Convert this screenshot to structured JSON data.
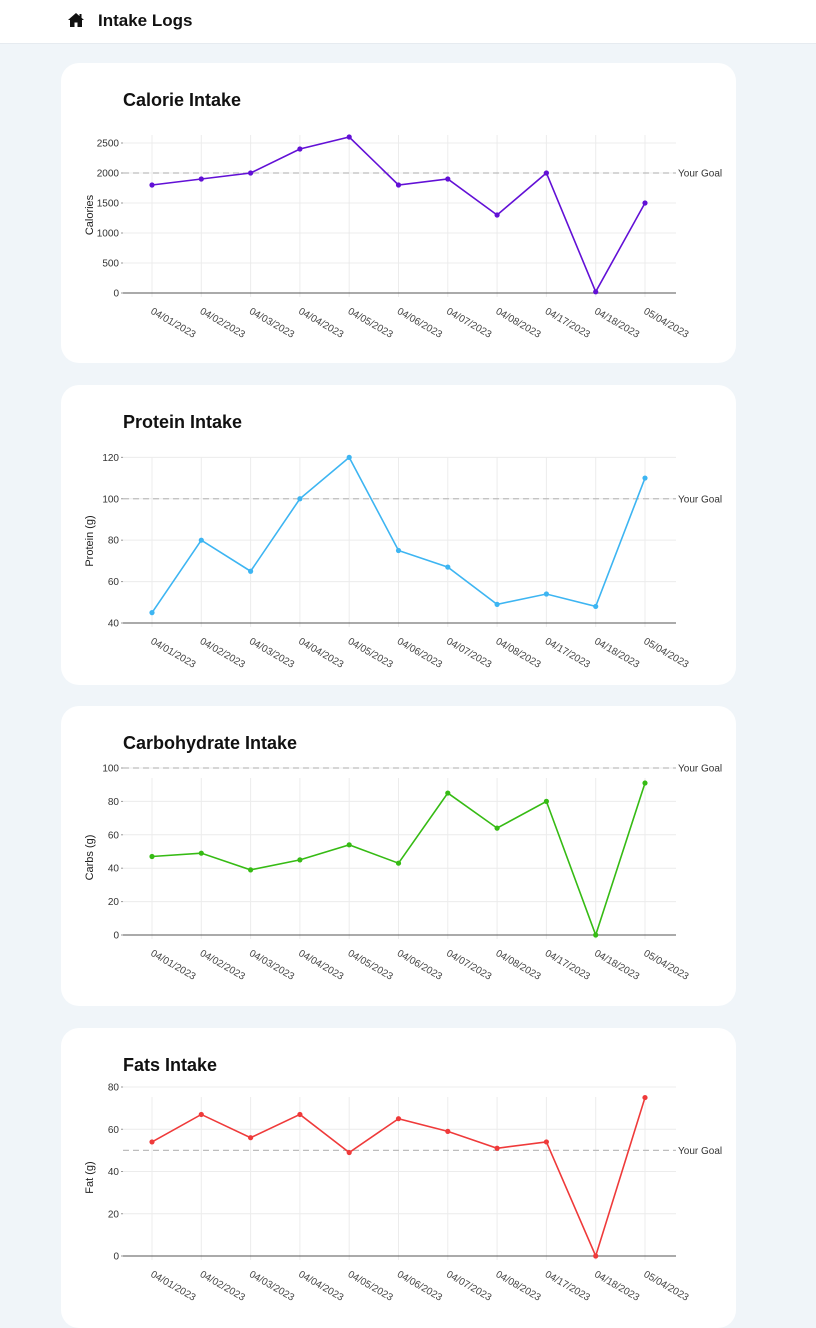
{
  "header": {
    "title": "Intake Logs",
    "home_icon": "home-icon"
  },
  "chart_data": [
    {
      "type": "line",
      "title": "Calorie Intake",
      "ylabel": "Calories",
      "xlabel": "",
      "categories": [
        "04/01/2023",
        "04/02/2023",
        "04/03/2023",
        "04/04/2023",
        "04/05/2023",
        "04/06/2023",
        "04/07/2023",
        "04/08/2023",
        "04/17/2023",
        "04/18/2023",
        "05/04/2023"
      ],
      "series": [
        {
          "values": [
            1800,
            1900,
            2000,
            2400,
            2600,
            1800,
            1900,
            1300,
            2000,
            20,
            1500
          ]
        }
      ],
      "ylim": [
        0,
        2800
      ],
      "yticks": [
        0,
        500,
        1000,
        1500,
        2000,
        2500
      ],
      "goal": 2000,
      "goal_label": "Your Goal",
      "color": "#6210d6",
      "grid": true
    },
    {
      "type": "line",
      "title": "Protein Intake",
      "ylabel": "Protein (g)",
      "xlabel": "",
      "categories": [
        "04/01/2023",
        "04/02/2023",
        "04/03/2023",
        "04/04/2023",
        "04/05/2023",
        "04/06/2023",
        "04/07/2023",
        "04/08/2023",
        "04/17/2023",
        "04/18/2023",
        "05/04/2023"
      ],
      "series": [
        {
          "values": [
            45,
            80,
            65,
            100,
            120,
            75,
            67,
            49,
            54,
            48,
            110
          ]
        }
      ],
      "ylim": [
        40,
        125
      ],
      "yticks": [
        40,
        60,
        80,
        100,
        120
      ],
      "goal": 100,
      "goal_label": "Your Goal",
      "color": "#3db5f2",
      "grid": true
    },
    {
      "type": "line",
      "title": "Carbohydrate Intake",
      "ylabel": "Carbs (g)",
      "xlabel": "",
      "categories": [
        "04/01/2023",
        "04/02/2023",
        "04/03/2023",
        "04/04/2023",
        "04/05/2023",
        "04/06/2023",
        "04/07/2023",
        "04/08/2023",
        "04/17/2023",
        "04/18/2023",
        "05/04/2023"
      ],
      "series": [
        {
          "values": [
            47,
            49,
            39,
            45,
            54,
            43,
            85,
            64,
            80,
            0,
            91
          ]
        }
      ],
      "ylim": [
        0,
        100
      ],
      "yticks": [
        0,
        20,
        40,
        60,
        80,
        100
      ],
      "goal": 100,
      "goal_label": "Your Goal",
      "color": "#36bb14",
      "grid": true
    },
    {
      "type": "line",
      "title": "Fats Intake",
      "ylabel": "Fat (g)",
      "xlabel": "",
      "categories": [
        "04/01/2023",
        "04/02/2023",
        "04/03/2023",
        "04/04/2023",
        "04/05/2023",
        "04/06/2023",
        "04/07/2023",
        "04/08/2023",
        "04/17/2023",
        "04/18/2023",
        "05/04/2023"
      ],
      "series": [
        {
          "values": [
            54,
            67,
            56,
            67,
            49,
            65,
            59,
            51,
            54,
            0,
            75
          ]
        }
      ],
      "ylim": [
        0,
        80
      ],
      "yticks": [
        0,
        20,
        40,
        60,
        80
      ],
      "goal": 50,
      "goal_label": "Your Goal",
      "color": "#ef3a3a",
      "grid": true
    }
  ]
}
